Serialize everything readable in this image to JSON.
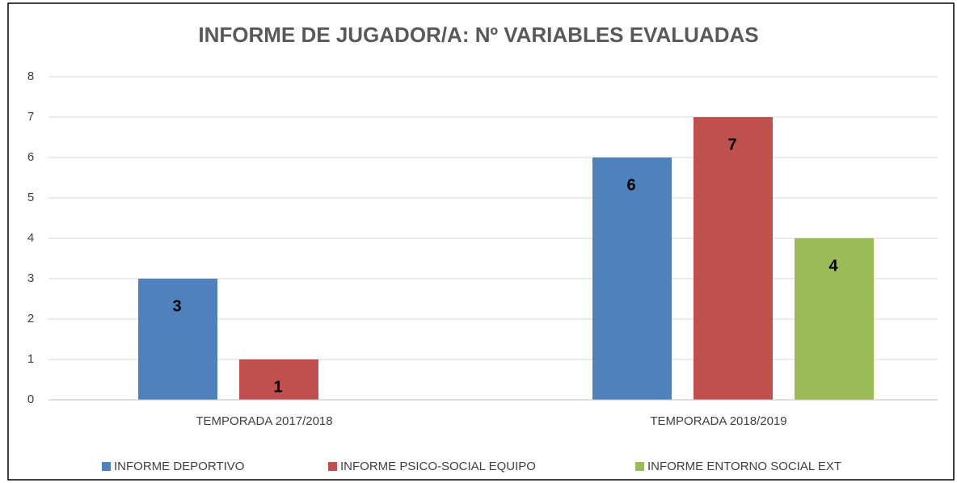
{
  "chart_data": {
    "type": "bar",
    "title": "INFORME DE JUGADOR/A:  Nº VARIABLES EVALUADAS",
    "categories": [
      "TEMPORADA 2017/2018",
      "TEMPORADA 2018/2019"
    ],
    "series": [
      {
        "name": "INFORME DEPORTIVO",
        "color": "#4f81bd",
        "values": [
          3,
          6
        ]
      },
      {
        "name": "INFORME PSICO-SOCIAL EQUIPO",
        "color": "#c0504d",
        "values": [
          1,
          7
        ]
      },
      {
        "name": "INFORME ENTORNO SOCIAL EXT",
        "color": "#9bbb59",
        "values": [
          null,
          4
        ]
      }
    ],
    "ylim": [
      0,
      8
    ],
    "yticks": [
      0,
      1,
      2,
      3,
      4,
      5,
      6,
      7,
      8
    ],
    "grid": true,
    "legend": "bottom"
  }
}
